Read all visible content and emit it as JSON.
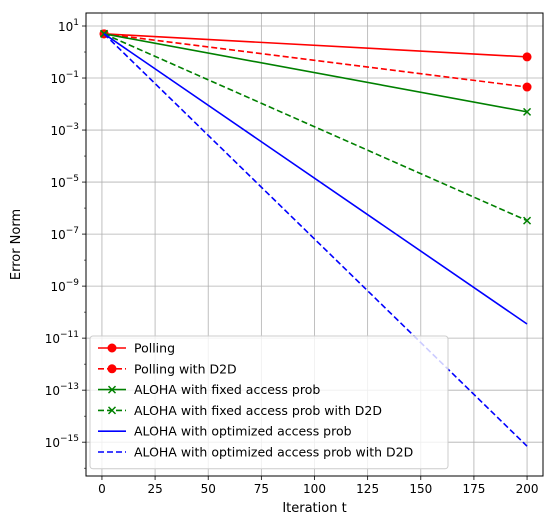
{
  "chart_data": {
    "type": "line",
    "title": "",
    "xlabel": "Iteration t",
    "ylabel": "Error Norm",
    "xlim": [
      -7.5,
      207.5
    ],
    "ylim_log10": [
      -16.3,
      1.5
    ],
    "yscale": "log",
    "grid": true,
    "legend_position": "lower-left",
    "xticks": [
      0,
      25,
      50,
      75,
      100,
      125,
      150,
      175,
      200
    ],
    "xtick_labels": [
      "0",
      "25",
      "50",
      "75",
      "100",
      "125",
      "150",
      "175",
      "200"
    ],
    "yticks_log10": [
      1,
      -1,
      -3,
      -5,
      -7,
      -9,
      -11,
      -13,
      -15
    ],
    "ytick_labels": [
      {
        "base": "10",
        "exp": "1"
      },
      {
        "base": "10",
        "exp": "−1"
      },
      {
        "base": "10",
        "exp": "−3"
      },
      {
        "base": "10",
        "exp": "−5"
      },
      {
        "base": "10",
        "exp": "−7"
      },
      {
        "base": "10",
        "exp": "−9"
      },
      {
        "base": "10",
        "exp": "−11"
      },
      {
        "base": "10",
        "exp": "−13"
      },
      {
        "base": "10",
        "exp": "−15"
      }
    ],
    "series": [
      {
        "name": "Polling",
        "color": "#ff0000",
        "dash": "solid",
        "marker": "circle",
        "x": [
          1,
          200
        ],
        "y": [
          5,
          0.65
        ]
      },
      {
        "name": "Polling with D2D",
        "color": "#ff0000",
        "dash": "dashed",
        "marker": "circle",
        "x": [
          1,
          200
        ],
        "y": [
          5,
          0.045
        ]
      },
      {
        "name": "ALOHA with fixed access prob",
        "color": "#008000",
        "dash": "solid",
        "marker": "x",
        "x": [
          1,
          200
        ],
        "y": [
          5,
          0.005
        ]
      },
      {
        "name": "ALOHA with fixed access prob with D2D",
        "color": "#008000",
        "dash": "dashed",
        "marker": "x",
        "x": [
          1,
          200
        ],
        "y": [
          5,
          3.3e-07
        ]
      },
      {
        "name": "ALOHA with optimized access prob",
        "color": "#0000ff",
        "dash": "solid",
        "marker": "none",
        "x": [
          1,
          200
        ],
        "y": [
          5,
          3.5e-11
        ]
      },
      {
        "name": "ALOHA with optimized access prob with D2D",
        "color": "#0000ff",
        "dash": "dashed",
        "marker": "none",
        "x": [
          1,
          200
        ],
        "y": [
          5,
          7e-16
        ]
      }
    ]
  }
}
